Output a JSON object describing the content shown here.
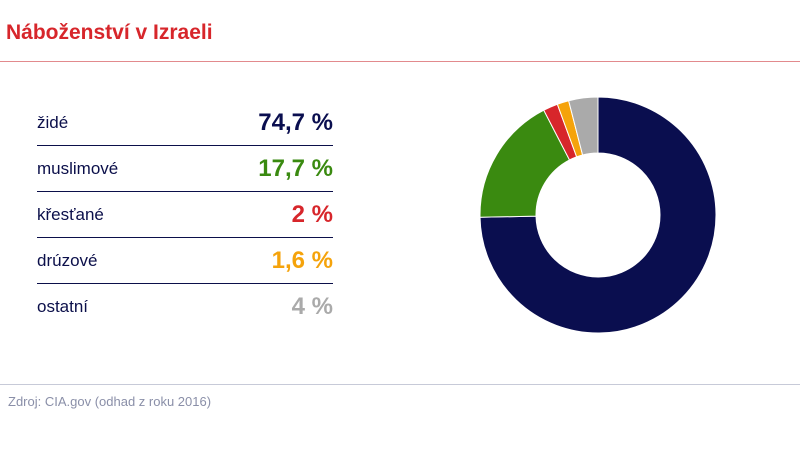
{
  "title": "Náboženství v Izraeli",
  "source": "Zdroj: CIA.gov (odhad z roku 2016)",
  "chart_data": {
    "type": "pie",
    "donut": true,
    "title": "Náboženství v Izraeli",
    "categories": [
      "židé",
      "muslimové",
      "křesťané",
      "drúzové",
      "ostatní"
    ],
    "values": [
      74.7,
      17.7,
      2,
      1.6,
      4
    ],
    "value_labels": [
      "74,7 %",
      "17,7 %",
      "2 %",
      "1,6 %",
      "4 %"
    ],
    "colors": [
      "#0a0e4f",
      "#3a8a10",
      "#d7262b",
      "#f5a30b",
      "#aaaaaa"
    ],
    "legend_position": "left",
    "start_angle": "top",
    "direction": "clockwise"
  }
}
